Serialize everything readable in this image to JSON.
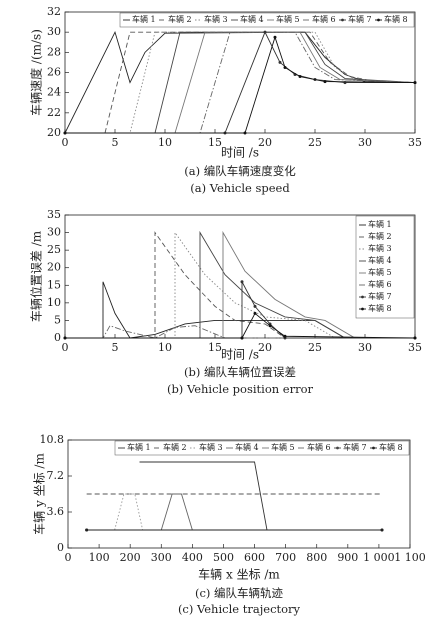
{
  "chart_data": [
    {
      "type": "line",
      "xlabel": "时间 /s",
      "ylabel": "车辆速度 /(m/s)",
      "caption_cn": "(a) 编队车辆速度变化",
      "caption_en": "(a) Vehicle speed",
      "xlim": [
        0,
        35
      ],
      "ylim": [
        20,
        32
      ],
      "xticks": [
        0,
        5,
        10,
        15,
        20,
        25,
        30,
        35
      ],
      "yticks": [
        20,
        22,
        24,
        26,
        28,
        30,
        32
      ],
      "legend": "top-right",
      "legend_orientation": "horizontal",
      "series": [
        {
          "name": "车辆 1",
          "color": "#222222",
          "style": "solid",
          "marker": false,
          "x": [
            0,
            5,
            6.5,
            8,
            10,
            24,
            26,
            28,
            30,
            35
          ],
          "values": [
            20,
            30,
            25,
            28,
            29.9,
            30,
            27.5,
            25.8,
            25.1,
            25
          ]
        },
        {
          "name": "车辆 2",
          "color": "#555555",
          "style": "dashed",
          "marker": false,
          "x": [
            0,
            4,
            6.5,
            24.5,
            26.5,
            28.5,
            31,
            35
          ],
          "values": [
            20,
            20,
            30,
            30,
            27,
            25.6,
            25.1,
            25
          ]
        },
        {
          "name": "车辆 3",
          "color": "#888888",
          "style": "dotted",
          "marker": false,
          "x": [
            0,
            6.5,
            9,
            25,
            27,
            29,
            35
          ],
          "values": [
            20,
            20,
            30,
            30,
            26.5,
            25.3,
            25
          ]
        },
        {
          "name": "车辆 4",
          "color": "#444444",
          "style": "solid",
          "marker": false,
          "x": [
            0,
            9,
            11.5,
            24,
            26,
            28,
            35
          ],
          "values": [
            20,
            20,
            30,
            30,
            26.8,
            25.4,
            25
          ]
        },
        {
          "name": "车辆 5",
          "color": "#777777",
          "style": "solid",
          "marker": false,
          "x": [
            0,
            11,
            14,
            23.5,
            25.5,
            27.5,
            35
          ],
          "values": [
            20,
            20,
            30,
            30,
            26.5,
            25.3,
            25
          ]
        },
        {
          "name": "车辆 6",
          "color": "#666666",
          "style": "dashdot",
          "marker": false,
          "x": [
            0,
            13.5,
            16.5,
            23,
            25,
            27,
            35
          ],
          "values": [
            20,
            20,
            30,
            30,
            26.5,
            25.3,
            25
          ]
        },
        {
          "name": "车辆 7",
          "color": "#333333",
          "style": "solid",
          "marker": true,
          "x": [
            0,
            16,
            20,
            21.5,
            23,
            25,
            28,
            35
          ],
          "values": [
            20,
            20,
            30,
            27,
            25.8,
            25.3,
            25,
            25
          ]
        },
        {
          "name": "车辆 8",
          "color": "#111111",
          "style": "solid",
          "marker": true,
          "x": [
            0,
            18,
            21,
            22,
            23.5,
            26,
            35
          ],
          "values": [
            20,
            20,
            29.5,
            26.5,
            25.6,
            25.1,
            25
          ]
        }
      ]
    },
    {
      "type": "line",
      "xlabel": "时间 /s",
      "ylabel": "车辆位置误差 /m",
      "caption_cn": "(b) 编队车辆位置误差",
      "caption_en": "(b) Vehicle position error",
      "xlim": [
        0,
        35
      ],
      "ylim": [
        0,
        35
      ],
      "xticks": [
        0,
        5,
        10,
        15,
        20,
        25,
        30,
        35
      ],
      "yticks": [
        0,
        5,
        10,
        15,
        20,
        25,
        30,
        35
      ],
      "legend": "top-right",
      "legend_orientation": "vertical",
      "series": [
        {
          "name": "车辆 1",
          "color": "#222222",
          "style": "solid",
          "marker": false,
          "x": [
            0,
            3.8,
            3.8,
            5,
            6.5,
            9,
            12,
            15,
            25,
            28,
            35
          ],
          "values": [
            0,
            0,
            16,
            7,
            0,
            1,
            4,
            5,
            5,
            0,
            0
          ]
        },
        {
          "name": "车辆 2",
          "color": "#555555",
          "style": "dashed",
          "marker": false,
          "x": [
            0,
            9,
            9,
            12,
            15,
            17,
            20,
            22,
            35
          ],
          "values": [
            0,
            0,
            30,
            18,
            9,
            5,
            4,
            0,
            0
          ]
        },
        {
          "name": "车辆 3",
          "color": "#888888",
          "style": "dotted",
          "marker": false,
          "x": [
            0,
            11,
            11,
            14,
            17,
            20,
            24,
            27,
            35
          ],
          "values": [
            0,
            0,
            30,
            18,
            10,
            6,
            5,
            0,
            0
          ]
        },
        {
          "name": "车辆 4",
          "color": "#444444",
          "style": "solid",
          "marker": false,
          "x": [
            0,
            13.5,
            13.5,
            16,
            19,
            22,
            25,
            28,
            35
          ],
          "values": [
            0,
            0,
            30,
            18,
            10,
            6,
            5,
            0,
            0
          ]
        },
        {
          "name": "车辆 5",
          "color": "#777777",
          "style": "solid",
          "marker": false,
          "x": [
            0,
            15.8,
            15.8,
            18,
            21,
            24,
            26,
            29,
            35
          ],
          "values": [
            0,
            0,
            30,
            19,
            11,
            6,
            5,
            0,
            0
          ]
        },
        {
          "name": "车辆 6",
          "color": "#666666",
          "style": "dashdot",
          "marker": false,
          "x": [
            0,
            3.8,
            4.5,
            6,
            9,
            11,
            13,
            16,
            35
          ],
          "values": [
            0,
            0,
            3.5,
            2,
            0,
            3,
            3.5,
            0,
            0
          ]
        },
        {
          "name": "车辆 7",
          "color": "#333333",
          "style": "solid",
          "marker": true,
          "x": [
            0,
            17.7,
            17.7,
            19,
            20.5,
            22,
            35
          ],
          "values": [
            0,
            0,
            16,
            9,
            4,
            0,
            0
          ]
        },
        {
          "name": "车辆 8",
          "color": "#111111",
          "style": "solid",
          "marker": true,
          "x": [
            0,
            17.7,
            19,
            20.5,
            22,
            35
          ],
          "values": [
            0,
            0,
            7,
            3.5,
            0.5,
            0
          ]
        }
      ]
    },
    {
      "type": "line",
      "xlabel": "车辆 x 坐标 /m",
      "ylabel": "车辆 y 坐标 /m",
      "caption_cn": "(c) 编队车辆轨迹",
      "caption_en": "(c) Vehicle trajectory",
      "xlim": [
        0,
        1100
      ],
      "ylim": [
        0,
        10.8
      ],
      "xticks": [
        0,
        100,
        200,
        300,
        400,
        500,
        600,
        700,
        800,
        900,
        {
          "value": 1000,
          "label": "1 000"
        },
        {
          "value": 1100,
          "label": "1 100"
        }
      ],
      "yticks": [
        0,
        3.6,
        7.2,
        10.8
      ],
      "legend": "top-right",
      "legend_orientation": "horizontal",
      "series": [
        {
          "name": "车辆 1",
          "color": "#333333",
          "style": "solid",
          "marker": false,
          "x": [
            230,
            600,
            620,
            640,
            1010
          ],
          "values": [
            8.6,
            8.6,
            5.2,
            1.8,
            1.8
          ]
        },
        {
          "name": "车辆 2",
          "color": "#555555",
          "style": "dashed",
          "marker": false,
          "x": [
            60,
            1010
          ],
          "values": [
            5.4,
            5.4
          ]
        },
        {
          "name": "车辆 3",
          "color": "#999999",
          "style": "dotted",
          "marker": false,
          "x": [
            60,
            150,
            180,
            215,
            240,
            1010
          ],
          "values": [
            1.8,
            1.8,
            5.4,
            5.4,
            1.8,
            1.8
          ]
        },
        {
          "name": "车辆 4",
          "color": "#666666",
          "style": "solid",
          "marker": false,
          "x": [
            60,
            300,
            335,
            365,
            400,
            1010
          ],
          "values": [
            1.8,
            1.8,
            5.4,
            5.4,
            1.8,
            1.8
          ]
        },
        {
          "name": "车辆 5",
          "color": "#777777",
          "style": "solid",
          "marker": false,
          "x": [
            60,
            1010
          ],
          "values": [
            1.8,
            1.8
          ]
        },
        {
          "name": "车辆 6",
          "color": "#666666",
          "style": "dashdot",
          "marker": false,
          "x": [
            60,
            1010
          ],
          "values": [
            1.8,
            1.8
          ]
        },
        {
          "name": "车辆 7",
          "color": "#444444",
          "style": "solid",
          "marker": true,
          "x": [
            60,
            1010
          ],
          "values": [
            1.8,
            1.8
          ]
        },
        {
          "name": "车辆 8",
          "color": "#222222",
          "style": "solid",
          "marker": true,
          "x": [
            60,
            1010
          ],
          "values": [
            1.8,
            1.8
          ]
        }
      ]
    }
  ]
}
